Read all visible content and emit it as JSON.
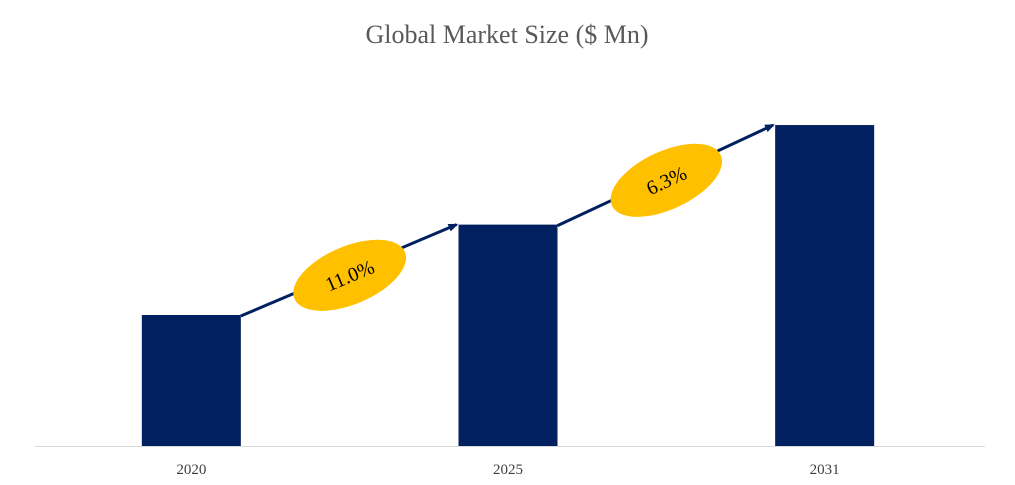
{
  "chart_data": {
    "type": "bar",
    "title": "Global Market Size ($ Mn)",
    "categories": [
      "2020",
      "2025",
      "2031"
    ],
    "values": [
      100,
      169,
      245
    ],
    "xlabel": "",
    "ylabel": "",
    "ylim": [
      0,
      260
    ],
    "grid": false,
    "legend": "none",
    "annotations": [
      {
        "from": "2020",
        "to": "2025",
        "label": "11.0%"
      },
      {
        "from": "2025",
        "to": "2031",
        "label": "6.3%"
      }
    ],
    "colors": {
      "bar": "#002060",
      "arrow": "#002060",
      "bubble": "#FFC000",
      "axis": "#D9D9D9",
      "title": "#595959",
      "tick": "#404040"
    }
  }
}
